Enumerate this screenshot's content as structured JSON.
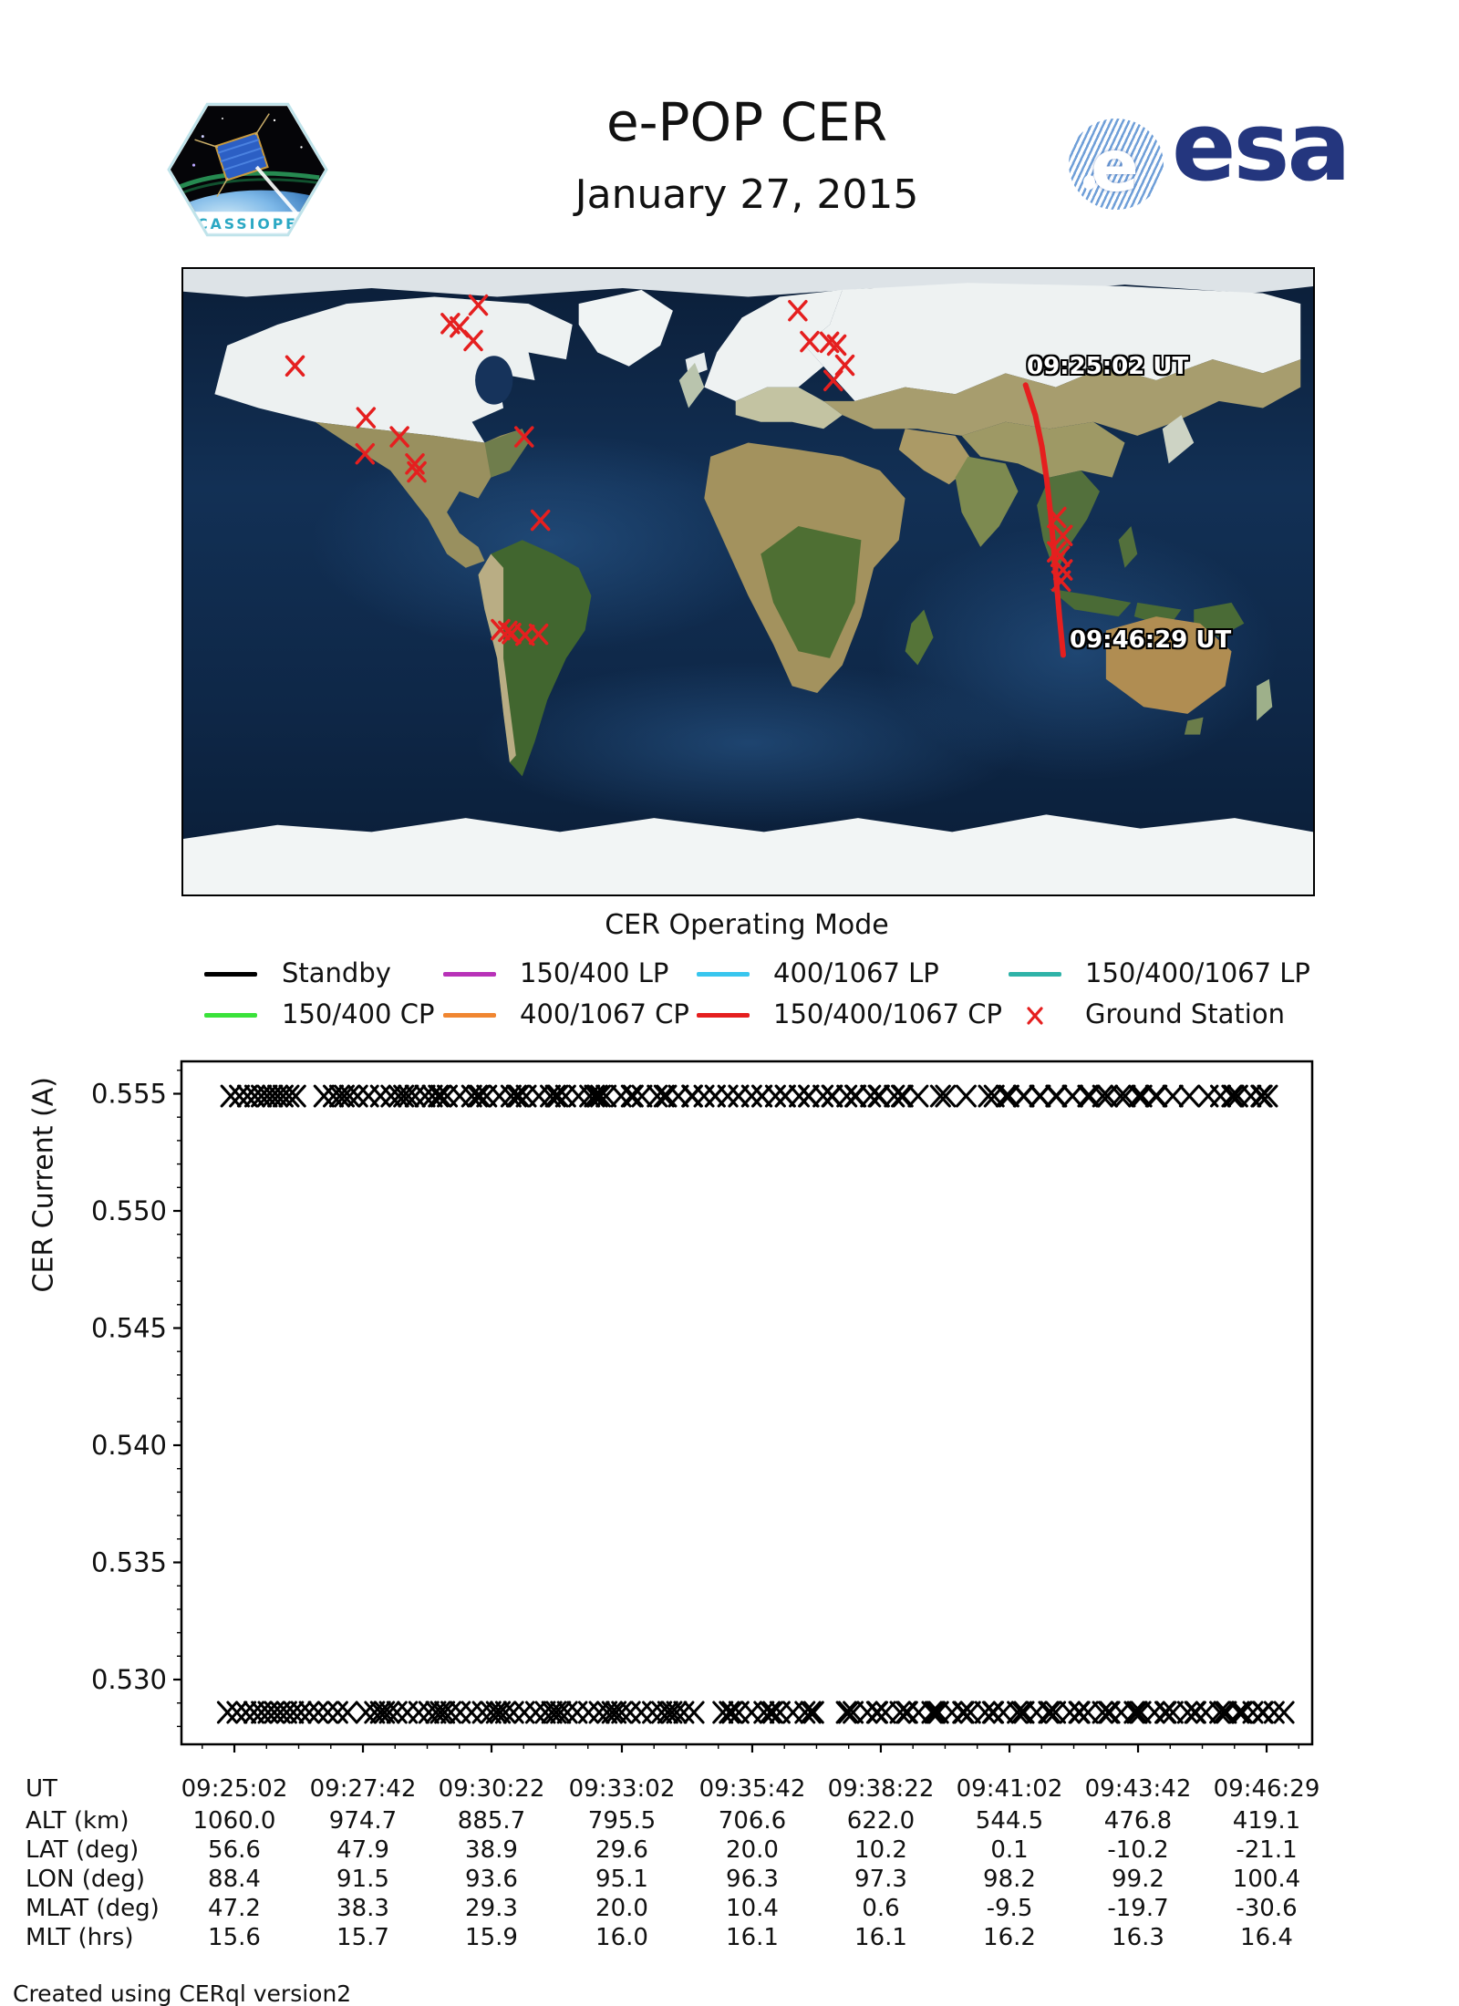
{
  "header": {
    "title": "e-POP CER",
    "date": "January 27, 2015",
    "patch_text": "CASSIOPE",
    "esa_text": "esa"
  },
  "map": {
    "track_start_label": "09:25:02 UT",
    "track_end_label": "09:46:29 UT",
    "track_color": "#e51f1f",
    "station_color": "#e51f1f",
    "track_lonlat": [
      [
        88.4,
        56.6
      ],
      [
        91.5,
        47.9
      ],
      [
        93.6,
        38.9
      ],
      [
        95.1,
        29.6
      ],
      [
        96.3,
        20.0
      ],
      [
        97.3,
        10.2
      ],
      [
        98.2,
        0.1
      ],
      [
        99.2,
        -10.2
      ],
      [
        100.4,
        -21.1
      ]
    ],
    "stations_lonlat": [
      [
        -86,
        79.6
      ],
      [
        -94.9,
        74.3
      ],
      [
        -92,
        73.3
      ],
      [
        -87.6,
        69.4
      ],
      [
        -144.4,
        62.1
      ],
      [
        -121.8,
        47.2
      ],
      [
        -111.1,
        41.7
      ],
      [
        -122.1,
        36.8
      ],
      [
        -106.2,
        33.9
      ],
      [
        -105.6,
        31.6
      ],
      [
        -71.4,
        41.7
      ],
      [
        -66.2,
        17.7
      ],
      [
        15.8,
        78
      ],
      [
        19.6,
        69.1
      ],
      [
        25.9,
        68.9
      ],
      [
        28.2,
        68.1
      ],
      [
        30.8,
        62.3
      ],
      [
        27.1,
        57.9
      ],
      [
        98.3,
        18.5
      ],
      [
        100.3,
        13.3
      ],
      [
        98.3,
        8.6
      ],
      [
        99.4,
        7.3
      ],
      [
        100.3,
        3.4
      ],
      [
        99.7,
        0.2
      ],
      [
        -78.9,
        -13.8
      ],
      [
        -76.6,
        -14.3
      ],
      [
        -75.4,
        -14.9
      ],
      [
        -71.1,
        -15.4
      ],
      [
        -66.8,
        -15.1
      ]
    ]
  },
  "legend": {
    "title": "CER Operating Mode",
    "rows": [
      [
        {
          "label": "Standby",
          "color": "#000000",
          "type": "line"
        },
        {
          "label": "150/400 LP",
          "color": "#b832b8",
          "type": "line"
        },
        {
          "label": "400/1067 LP",
          "color": "#38c6ee",
          "type": "line"
        },
        {
          "label": "150/400/1067 LP",
          "color": "#2fb3a8",
          "type": "line"
        }
      ],
      [
        {
          "label": "150/400 CP",
          "color": "#3ae23a",
          "type": "line"
        },
        {
          "label": "400/1067 CP",
          "color": "#f08631",
          "type": "line"
        },
        {
          "label": "150/400/1067 CP",
          "color": "#e51f1f",
          "type": "line"
        },
        {
          "label": "Ground Station",
          "color": "#e51f1f",
          "type": "marker"
        }
      ]
    ]
  },
  "chart_data": {
    "type": "scatter",
    "title": "",
    "xlabel": "",
    "ylabel": "CER Current (A)",
    "marker": "x",
    "marker_color": "#000000",
    "ylim": [
      0.5272,
      0.5564
    ],
    "yticks": [
      0.555,
      0.55,
      0.545,
      0.54,
      0.535,
      0.53
    ],
    "ytick_labels": [
      "0.555",
      "0.550",
      "0.545",
      "0.540",
      "0.535",
      "0.530"
    ],
    "xtick_labels": [
      "09:25:02",
      "09:27:42",
      "09:30:22",
      "09:33:02",
      "09:35:42",
      "09:38:22",
      "09:41:02",
      "09:43:42",
      "09:46:29"
    ],
    "grid": false,
    "series": [
      {
        "name": "upper-level",
        "value": 0.5549,
        "clusters": [
          [
            0.042,
            0.105,
            11
          ],
          [
            0.123,
            0.218,
            14
          ],
          [
            0.218,
            0.364,
            22
          ],
          [
            0.364,
            0.448,
            12
          ],
          [
            0.448,
            0.649,
            30
          ],
          [
            0.669,
            0.69,
            3
          ],
          [
            0.713,
            0.82,
            16
          ],
          [
            0.82,
            0.846,
            4
          ],
          [
            0.849,
            0.875,
            4
          ],
          [
            0.893,
            0.897,
            1
          ],
          [
            0.912,
            0.964,
            9
          ]
        ]
      },
      {
        "name": "lower-level",
        "value": 0.5286,
        "clusters": [
          [
            0.039,
            0.145,
            16
          ],
          [
            0.16,
            0.455,
            44
          ],
          [
            0.475,
            0.562,
            13
          ],
          [
            0.584,
            0.935,
            52
          ],
          [
            0.935,
            0.972,
            7
          ]
        ]
      }
    ]
  },
  "table": {
    "rows": [
      {
        "label": "UT",
        "values": [
          "09:25:02",
          "09:27:42",
          "09:30:22",
          "09:33:02",
          "09:35:42",
          "09:38:22",
          "09:41:02",
          "09:43:42",
          "09:46:29"
        ]
      },
      {
        "label": "ALT (km)",
        "values": [
          "1060.0",
          "974.7",
          "885.7",
          "795.5",
          "706.6",
          "622.0",
          "544.5",
          "476.8",
          "419.1"
        ]
      },
      {
        "label": "LAT (deg)",
        "values": [
          "56.6",
          "47.9",
          "38.9",
          "29.6",
          "20.0",
          "10.2",
          "0.1",
          "-10.2",
          "-21.1"
        ]
      },
      {
        "label": "LON (deg)",
        "values": [
          "88.4",
          "91.5",
          "93.6",
          "95.1",
          "96.3",
          "97.3",
          "98.2",
          "99.2",
          "100.4"
        ]
      },
      {
        "label": "MLAT (deg)",
        "values": [
          "47.2",
          "38.3",
          "29.3",
          "20.0",
          "10.4",
          "0.6",
          "-9.5",
          "-19.7",
          "-30.6"
        ]
      },
      {
        "label": "MLT (hrs)",
        "values": [
          "15.6",
          "15.7",
          "15.9",
          "16.0",
          "16.1",
          "16.1",
          "16.2",
          "16.3",
          "16.4"
        ]
      }
    ]
  },
  "footer": {
    "credit": "Created using CERql version2"
  }
}
